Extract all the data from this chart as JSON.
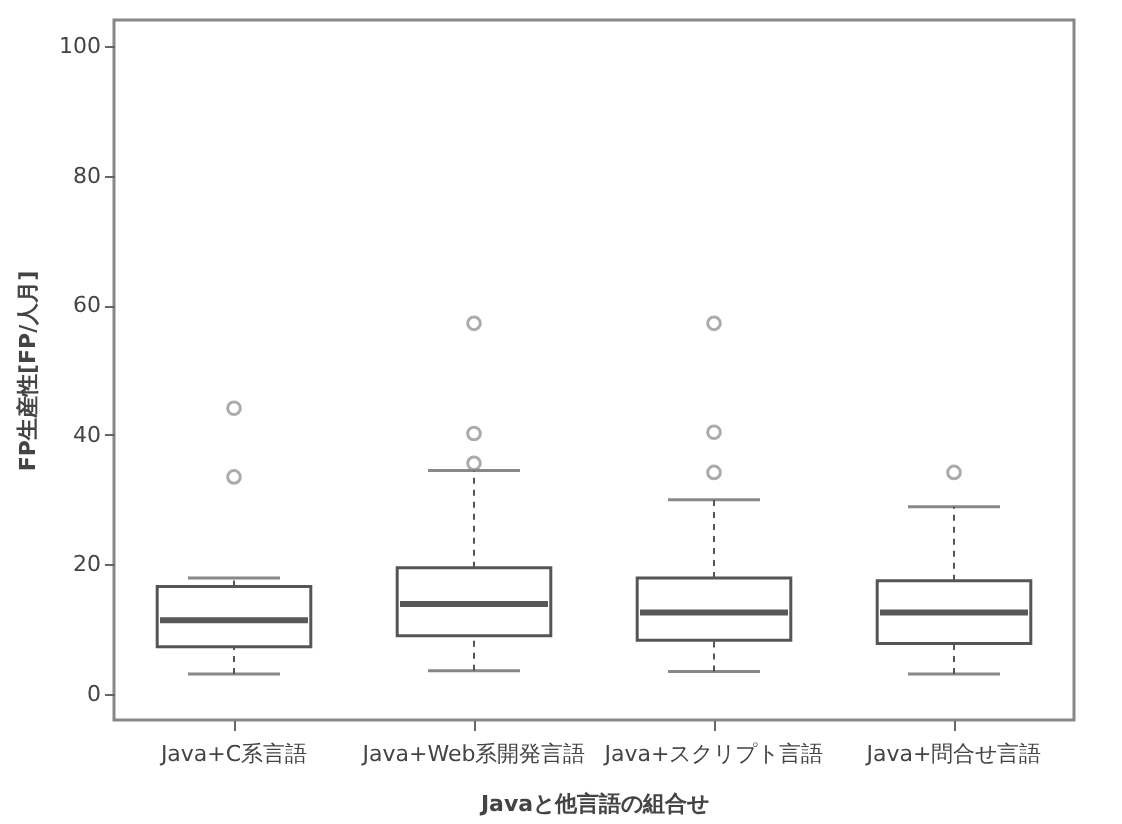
{
  "chart_data": {
    "type": "box",
    "xlabel": "Javaと他言語の組合せ",
    "ylabel": "FP生産性[FP/人月]",
    "categories": [
      "Java+C系言語",
      "Java+Web系開発言語",
      "Java+スクリプト言語",
      "Java+問合せ言語"
    ],
    "boxes": [
      {
        "low": 3.1,
        "q1": 7.3,
        "median": 11.4,
        "q3": 16.6,
        "high": 17.9,
        "outliers": [
          33.5,
          44.1
        ]
      },
      {
        "low": 3.6,
        "q1": 9.0,
        "median": 13.9,
        "q3": 19.5,
        "high": 34.5,
        "outliers": [
          35.6,
          40.2,
          57.2
        ]
      },
      {
        "low": 3.5,
        "q1": 8.3,
        "median": 12.6,
        "q3": 17.9,
        "high": 30.0,
        "outliers": [
          34.2,
          40.4,
          57.2
        ]
      },
      {
        "low": 3.1,
        "q1": 7.8,
        "median": 12.6,
        "q3": 17.5,
        "high": 28.9,
        "outliers": [
          34.2
        ]
      }
    ],
    "ylim": [
      -4,
      104
    ],
    "yticks": [
      0,
      20,
      40,
      60,
      80,
      100
    ],
    "grid": false
  }
}
